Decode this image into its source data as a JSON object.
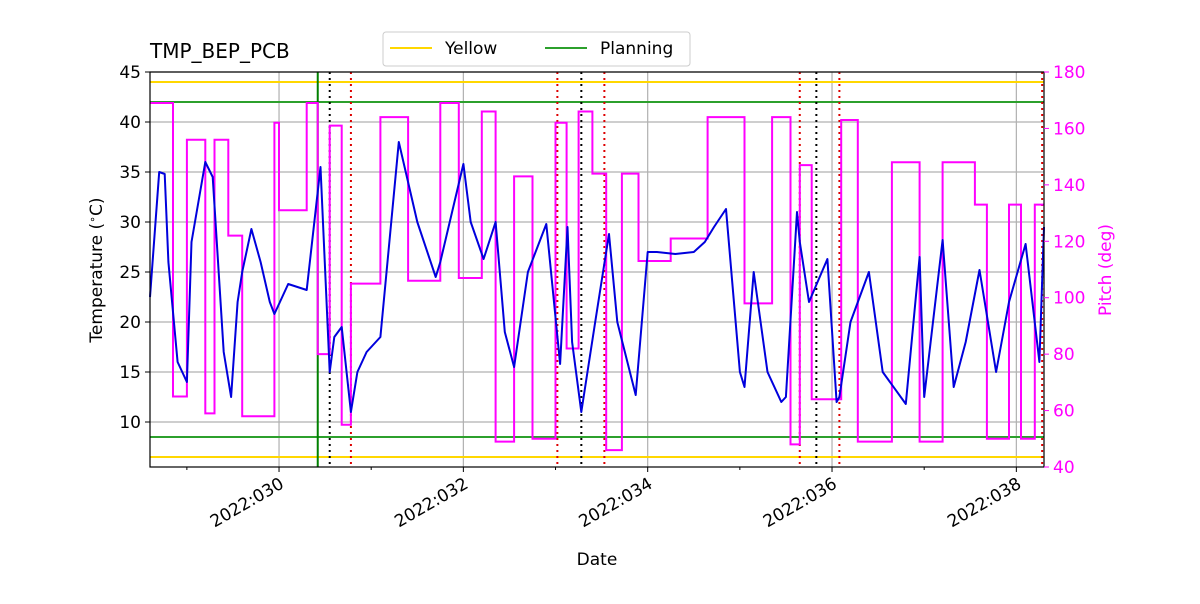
{
  "chart_data": {
    "type": "line",
    "title": "TMP_BEP_PCB",
    "xlabel": "Date",
    "ylabel": "Temperature ($^\\circ$C)",
    "ylabel_right": "Pitch (deg)",
    "xlim_day": [
      28.6,
      38.3
    ],
    "ylim": [
      5.5,
      45
    ],
    "ylim_right": [
      40,
      180
    ],
    "x_tick_labels": [
      "2022:030",
      "2022:032",
      "2022:034",
      "2022:036",
      "2022:038"
    ],
    "x_tick_days": [
      30,
      32,
      34,
      36,
      38
    ],
    "y_tick_values": [
      10,
      15,
      20,
      25,
      30,
      35,
      40,
      45
    ],
    "y_right_tick_values": [
      40,
      60,
      80,
      100,
      120,
      140,
      160,
      180
    ],
    "grid": true,
    "legend_position": "top-center",
    "legend": [
      {
        "name": "Yellow",
        "color": "#FFD700"
      },
      {
        "name": "Planning",
        "color": "#2CA02C"
      }
    ],
    "limit_lines": {
      "yellow": {
        "values": [
          6.5,
          44.0
        ],
        "color": "#FFD700"
      },
      "planning": {
        "values": [
          8.5,
          42.0
        ],
        "color": "#2CA02C"
      }
    },
    "now_line": {
      "day": 30.42,
      "color": "#008000"
    },
    "black_dotted_days": [
      30.55,
      33.28,
      35.83
    ],
    "red_dotted_days": [
      30.78,
      33.02,
      33.53,
      35.65,
      36.08,
      38.28
    ],
    "temperature_series": {
      "name": "TMP_BEP_PCB",
      "color": "#0000DD",
      "days": [
        28.6,
        28.7,
        28.76,
        28.8,
        28.9,
        29.0,
        29.05,
        29.2,
        29.28,
        29.4,
        29.48,
        29.55,
        29.6,
        29.7,
        29.8,
        29.9,
        29.95,
        30.1,
        30.3,
        30.45,
        30.55,
        30.6,
        30.68,
        30.78,
        30.85,
        30.95,
        31.05,
        31.1,
        31.3,
        31.5,
        31.7,
        31.75,
        32.0,
        32.08,
        32.22,
        32.35,
        32.45,
        32.55,
        32.7,
        32.9,
        33.05,
        33.13,
        33.18,
        33.28,
        33.43,
        33.58,
        33.67,
        33.87,
        34.0,
        34.1,
        34.3,
        34.5,
        34.62,
        34.72,
        34.85,
        35.0,
        35.05,
        35.15,
        35.3,
        35.45,
        35.5,
        35.62,
        35.65,
        35.75,
        35.95,
        36.05,
        36.08,
        36.2,
        36.4,
        36.55,
        36.8,
        36.95,
        37.0,
        37.2,
        37.32,
        37.45,
        37.6,
        37.78,
        37.92,
        38.1,
        38.25,
        38.3
      ],
      "values": [
        22.5,
        35.0,
        34.8,
        26.0,
        16.0,
        14.0,
        28.0,
        36.0,
        34.5,
        17.0,
        12.5,
        22.0,
        25.0,
        29.3,
        26.0,
        22.0,
        20.8,
        23.8,
        23.2,
        35.5,
        15.0,
        18.5,
        19.5,
        11.0,
        15.0,
        17.0,
        18.0,
        18.5,
        38.0,
        30.0,
        24.5,
        26.0,
        35.8,
        30.0,
        26.3,
        30.0,
        19.0,
        15.5,
        25.0,
        29.8,
        15.8,
        29.5,
        18.0,
        11.0,
        20.0,
        28.8,
        20.0,
        12.7,
        27.0,
        27.0,
        26.8,
        27.0,
        28.0,
        29.5,
        31.3,
        15.0,
        13.5,
        25.0,
        15.0,
        12.0,
        12.5,
        31.0,
        28.0,
        22.0,
        26.3,
        12.0,
        12.5,
        20.0,
        25.0,
        15.0,
        11.8,
        26.5,
        12.5,
        28.2,
        13.5,
        18.0,
        25.2,
        15.0,
        22.0,
        27.8,
        16.0,
        29.5
      ]
    },
    "pitch_series": {
      "name": "Pitch",
      "color": "#FF00FF",
      "days": [
        28.6,
        28.85,
        28.85,
        29.0,
        29.0,
        29.2,
        29.2,
        29.3,
        29.3,
        29.45,
        29.45,
        29.6,
        29.6,
        29.95,
        29.95,
        30.0,
        30.0,
        30.3,
        30.3,
        30.42,
        30.42,
        30.55,
        30.55,
        30.68,
        30.68,
        30.78,
        30.78,
        31.1,
        31.1,
        31.4,
        31.4,
        31.75,
        31.75,
        31.95,
        31.95,
        32.2,
        32.2,
        32.35,
        32.35,
        32.55,
        32.55,
        32.75,
        32.75,
        33.0,
        33.0,
        33.12,
        33.12,
        33.25,
        33.25,
        33.4,
        33.4,
        33.55,
        33.55,
        33.72,
        33.72,
        33.9,
        33.9,
        34.25,
        34.25,
        34.65,
        34.65,
        35.05,
        35.05,
        35.35,
        35.35,
        35.55,
        35.55,
        35.65,
        35.65,
        35.78,
        35.78,
        36.1,
        36.1,
        36.28,
        36.28,
        36.65,
        36.65,
        36.95,
        36.95,
        37.2,
        37.2,
        37.55,
        37.55,
        37.68,
        37.68,
        37.92,
        37.92,
        38.05,
        38.05,
        38.2,
        38.2,
        38.3
      ],
      "values": [
        169,
        169,
        65,
        65,
        156,
        156,
        59,
        59,
        156,
        156,
        122,
        122,
        58,
        58,
        162,
        162,
        131,
        131,
        169,
        169,
        80,
        80,
        161,
        161,
        55,
        55,
        105,
        105,
        164,
        164,
        106,
        106,
        169,
        169,
        107,
        107,
        166,
        166,
        49,
        49,
        143,
        143,
        50,
        50,
        162,
        162,
        82,
        82,
        166,
        166,
        144,
        144,
        46,
        46,
        144,
        144,
        113,
        113,
        121,
        121,
        164,
        164,
        98,
        98,
        164,
        164,
        48,
        48,
        147,
        147,
        64,
        64,
        163,
        163,
        49,
        49,
        148,
        148,
        49,
        49,
        148,
        148,
        133,
        133,
        50,
        50,
        133,
        133,
        50,
        50,
        133,
        133
      ]
    }
  }
}
